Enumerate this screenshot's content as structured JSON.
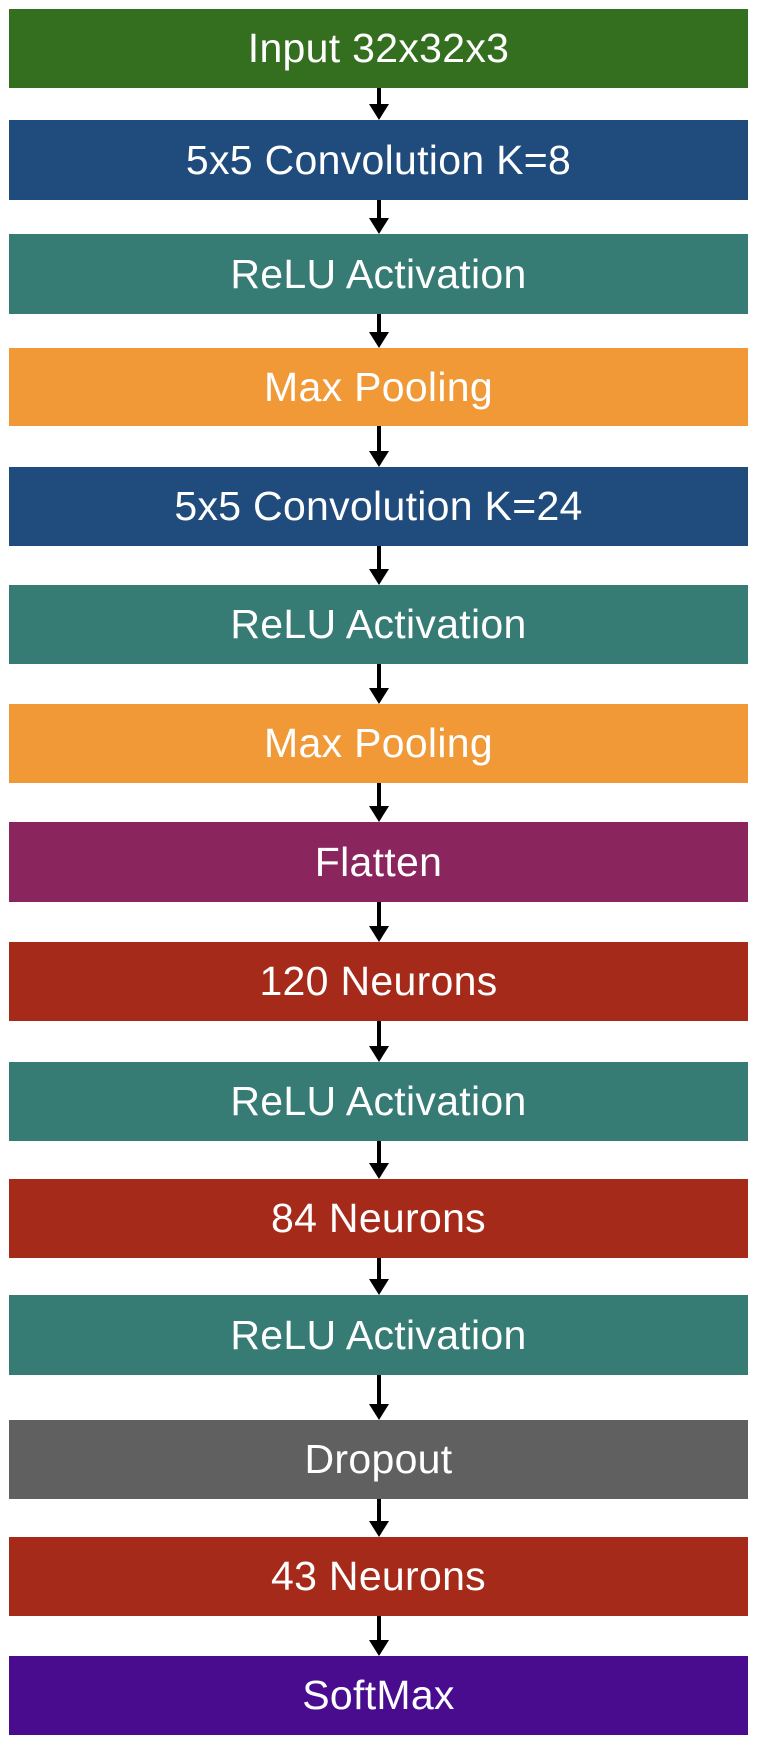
{
  "layers": [
    {
      "label": "Input 32x32x3",
      "color": "#336f1f"
    },
    {
      "label": "5x5 Convolution K=8",
      "color": "#1f4b7d"
    },
    {
      "label": "ReLU Activation",
      "color": "#367c75"
    },
    {
      "label": "Max Pooling",
      "color": "#f09936"
    },
    {
      "label": "5x5 Convolution K=24",
      "color": "#1f4b7d"
    },
    {
      "label": "ReLU Activation",
      "color": "#367c75"
    },
    {
      "label": "Max Pooling",
      "color": "#f09936"
    },
    {
      "label": "Flatten",
      "color": "#8a255e"
    },
    {
      "label": "120 Neurons",
      "color": "#a62a19"
    },
    {
      "label": "ReLU Activation",
      "color": "#367c75"
    },
    {
      "label": "84 Neurons",
      "color": "#a62a19"
    },
    {
      "label": "ReLU Activation",
      "color": "#367c75"
    },
    {
      "label": "Dropout",
      "color": "#606060"
    },
    {
      "label": "43 Neurons",
      "color": "#a62a19"
    },
    {
      "label": "SoftMax",
      "color": "#4a0c8f"
    }
  ]
}
